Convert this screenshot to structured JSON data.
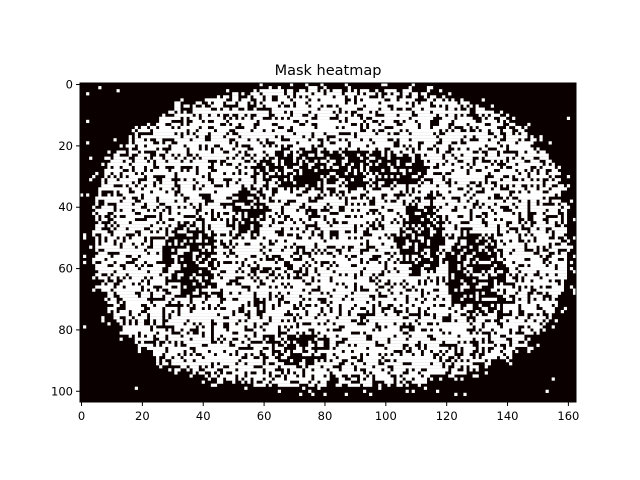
{
  "chart_data": {
    "type": "heatmap",
    "title": "Mask heatmap",
    "xlabel": "",
    "ylabel": "",
    "xlim": [
      -0.5,
      162.5
    ],
    "ylim": [
      103.5,
      -0.5
    ],
    "grid": false,
    "legend": "none",
    "colormap": "hot",
    "cell_values": [
      0,
      1
    ],
    "colors": {
      "background_cell": "#0b0000",
      "mask_cell": "#ffffff",
      "axes": "#000000"
    },
    "mask_region": {
      "shape": "rounded-ellipse",
      "center_x": 82,
      "center_y": 50,
      "radius_x": 78,
      "radius_y": 49,
      "fill_probability": 0.72
    },
    "dark_blobs": [
      {
        "x": 35,
        "y": 58,
        "rx": 9,
        "ry": 13
      },
      {
        "x": 130,
        "y": 62,
        "rx": 10,
        "ry": 14
      },
      {
        "x": 84,
        "y": 28,
        "rx": 30,
        "ry": 7
      },
      {
        "x": 112,
        "y": 50,
        "rx": 8,
        "ry": 12
      },
      {
        "x": 70,
        "y": 86,
        "rx": 12,
        "ry": 6
      },
      {
        "x": 55,
        "y": 42,
        "rx": 6,
        "ry": 9
      }
    ],
    "x_ticks": [
      {
        "value": 0,
        "label": "0"
      },
      {
        "value": 20,
        "label": "20"
      },
      {
        "value": 40,
        "label": "40"
      },
      {
        "value": 60,
        "label": "60"
      },
      {
        "value": 80,
        "label": "80"
      },
      {
        "value": 100,
        "label": "100"
      },
      {
        "value": 120,
        "label": "120"
      },
      {
        "value": 140,
        "label": "140"
      },
      {
        "value": 160,
        "label": "160"
      }
    ],
    "y_ticks": [
      {
        "value": 0,
        "label": "0"
      },
      {
        "value": 20,
        "label": "20"
      },
      {
        "value": 40,
        "label": "40"
      },
      {
        "value": 60,
        "label": "60"
      },
      {
        "value": 80,
        "label": "80"
      },
      {
        "value": 100,
        "label": "100"
      }
    ]
  }
}
